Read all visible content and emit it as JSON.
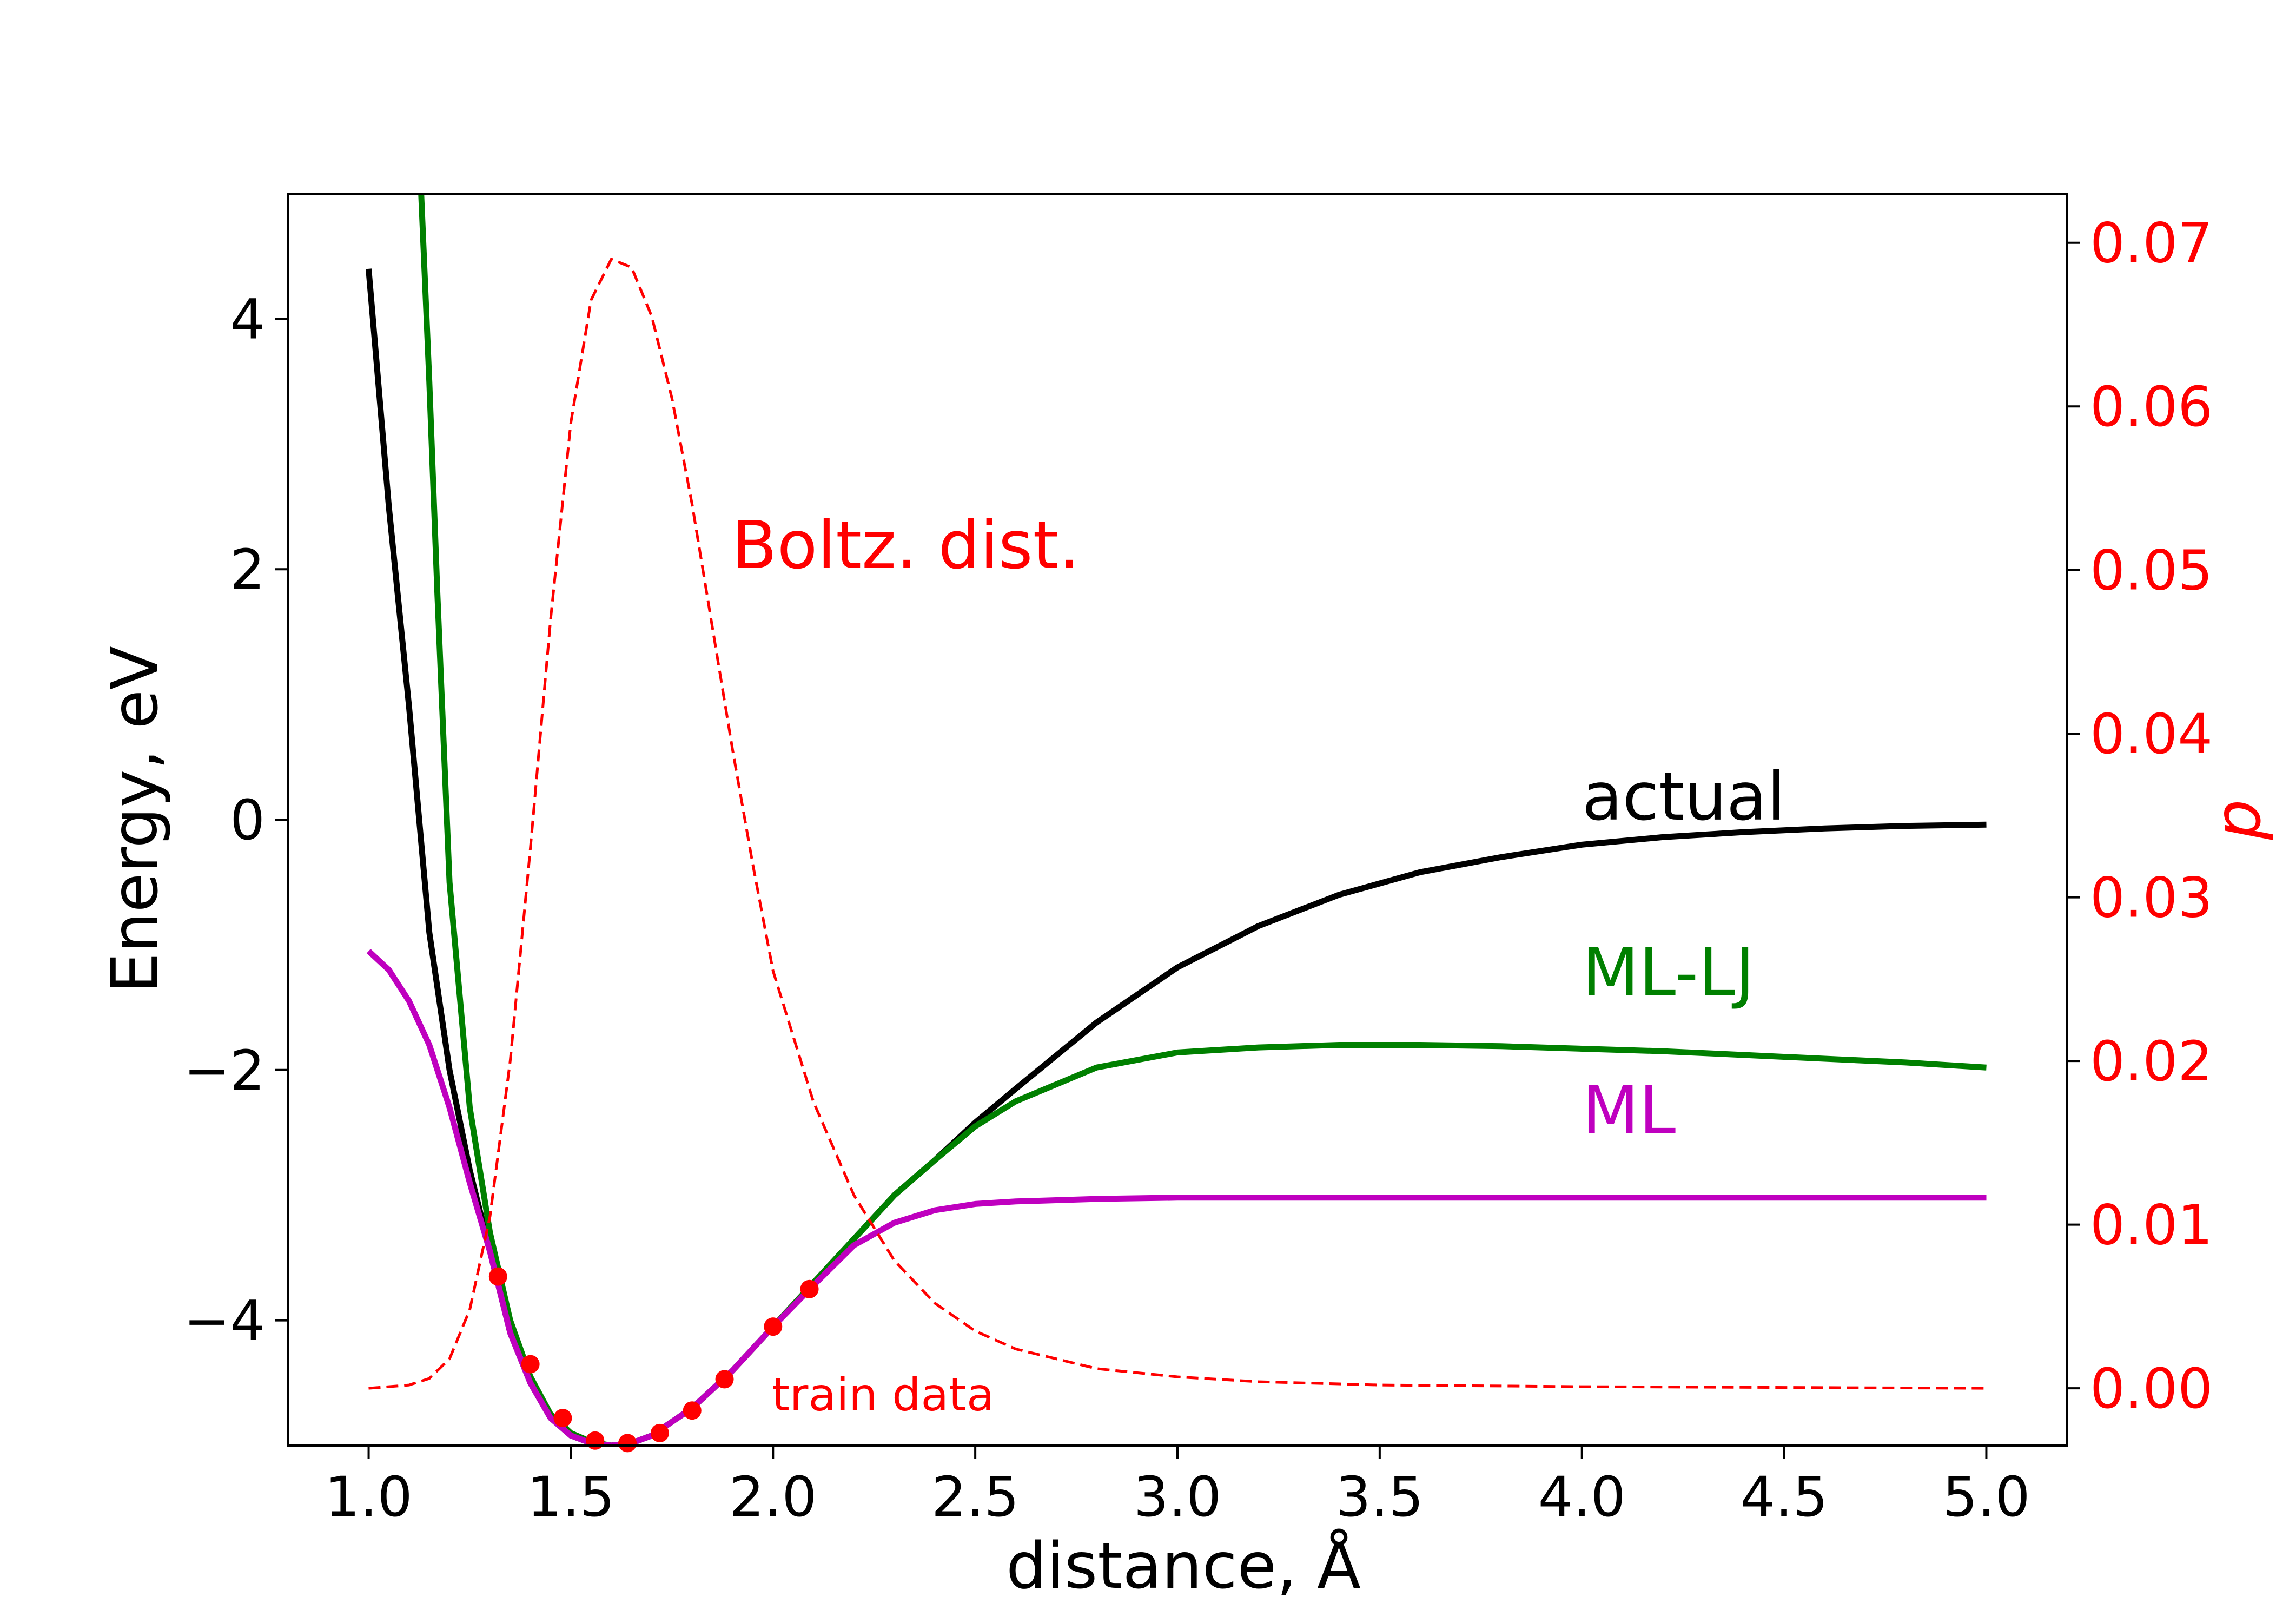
{
  "chart_data": {
    "type": "line",
    "xlabel": "distance, Å",
    "ylabel": "Energy, eV",
    "ylabel_right": "p",
    "xlim": [
      0.8,
      5.2
    ],
    "ylim": [
      -5.0,
      5.0
    ],
    "ylim_right": [
      -0.0035,
      0.073
    ],
    "x_ticks": [
      "1.0",
      "1.5",
      "2.0",
      "2.5",
      "3.0",
      "3.5",
      "4.0",
      "4.5",
      "5.0"
    ],
    "y_ticks": [
      "−4",
      "−2",
      "0",
      "2",
      "4"
    ],
    "y_ticks_right": [
      "0.00",
      "0.01",
      "0.02",
      "0.03",
      "0.04",
      "0.05",
      "0.06",
      "0.07"
    ],
    "grid": false,
    "annotations": [
      {
        "text": "Boltz. dist.",
        "color": "#ff0000"
      },
      {
        "text": "actual",
        "color": "#000000"
      },
      {
        "text": "ML-LJ",
        "color": "#008000"
      },
      {
        "text": "ML",
        "color": "#bf00bf"
      },
      {
        "text": "train data",
        "color": "#ff0000"
      }
    ],
    "series": [
      {
        "color": "#000000",
        "axis": "left",
        "style": "solid",
        "x": [
          1.0,
          1.05,
          1.1,
          1.15,
          1.2,
          1.25,
          1.3,
          1.35,
          1.4,
          1.45,
          1.5,
          1.55,
          1.6,
          1.65,
          1.7,
          1.8,
          1.9,
          2.0,
          2.1,
          2.2,
          2.3,
          2.4,
          2.5,
          2.6,
          2.8,
          3.0,
          3.2,
          3.4,
          3.6,
          3.8,
          4.0,
          4.2,
          4.4,
          4.6,
          4.8,
          5.0
        ],
        "y": [
          4.4,
          2.5,
          0.9,
          -0.9,
          -2.0,
          -2.8,
          -3.45,
          -4.1,
          -4.5,
          -4.78,
          -4.92,
          -4.98,
          -5.0,
          -4.98,
          -4.92,
          -4.7,
          -4.4,
          -4.05,
          -3.7,
          -3.35,
          -3.0,
          -2.72,
          -2.42,
          -2.15,
          -1.62,
          -1.18,
          -0.85,
          -0.6,
          -0.42,
          -0.3,
          -0.2,
          -0.14,
          -0.1,
          -0.07,
          -0.05,
          -0.04
        ]
      },
      {
        "color": "#008000",
        "axis": "left",
        "style": "solid",
        "x": [
          1.13,
          1.15,
          1.17,
          1.2,
          1.25,
          1.3,
          1.35,
          1.4,
          1.45,
          1.5,
          1.55,
          1.6,
          1.65,
          1.7,
          1.8,
          1.9,
          2.0,
          2.1,
          2.2,
          2.3,
          2.4,
          2.5,
          2.6,
          2.8,
          3.0,
          3.2,
          3.4,
          3.6,
          3.8,
          4.0,
          4.2,
          4.4,
          4.6,
          4.8,
          5.0
        ],
        "y": [
          5.0,
          3.5,
          1.8,
          -0.5,
          -2.3,
          -3.3,
          -4.0,
          -4.45,
          -4.75,
          -4.9,
          -4.97,
          -5.0,
          -4.98,
          -4.92,
          -4.7,
          -4.4,
          -4.05,
          -3.7,
          -3.35,
          -3.0,
          -2.72,
          -2.45,
          -2.25,
          -1.98,
          -1.86,
          -1.82,
          -1.8,
          -1.8,
          -1.81,
          -1.83,
          -1.85,
          -1.88,
          -1.91,
          -1.94,
          -1.98
        ]
      },
      {
        "color": "#bf00bf",
        "axis": "left",
        "style": "solid",
        "x": [
          1.0,
          1.05,
          1.1,
          1.15,
          1.2,
          1.25,
          1.3,
          1.35,
          1.4,
          1.45,
          1.5,
          1.55,
          1.6,
          1.65,
          1.7,
          1.8,
          1.9,
          2.0,
          2.1,
          2.2,
          2.3,
          2.4,
          2.5,
          2.6,
          2.8,
          3.0,
          3.5,
          4.0,
          4.5,
          5.0
        ],
        "y": [
          -1.05,
          -1.2,
          -1.45,
          -1.8,
          -2.3,
          -2.9,
          -3.45,
          -4.1,
          -4.5,
          -4.78,
          -4.92,
          -4.98,
          -5.0,
          -4.98,
          -4.92,
          -4.7,
          -4.4,
          -4.05,
          -3.72,
          -3.4,
          -3.22,
          -3.12,
          -3.07,
          -3.05,
          -3.03,
          -3.02,
          -3.02,
          -3.02,
          -3.02,
          -3.02
        ]
      },
      {
        "color": "#ff0000",
        "axis": "right",
        "style": "dashed",
        "x": [
          1.0,
          1.1,
          1.15,
          1.2,
          1.25,
          1.3,
          1.35,
          1.4,
          1.45,
          1.5,
          1.55,
          1.6,
          1.65,
          1.7,
          1.75,
          1.8,
          1.85,
          1.9,
          1.95,
          2.0,
          2.1,
          2.2,
          2.3,
          2.4,
          2.5,
          2.6,
          2.8,
          3.0,
          3.2,
          3.5,
          4.0,
          4.5,
          5.0
        ],
        "y": [
          0.0,
          0.0002,
          0.0006,
          0.0018,
          0.0048,
          0.0105,
          0.02,
          0.033,
          0.047,
          0.059,
          0.0665,
          0.069,
          0.0685,
          0.0655,
          0.0605,
          0.054,
          0.0465,
          0.039,
          0.032,
          0.0255,
          0.0175,
          0.0118,
          0.0078,
          0.0052,
          0.0035,
          0.0024,
          0.0012,
          0.0007,
          0.0004,
          0.0002,
          0.0001,
          5e-05,
          0.0
        ]
      }
    ],
    "train_data": {
      "color": "#ff0000",
      "x": [
        1.32,
        1.4,
        1.48,
        1.56,
        1.64,
        1.72,
        1.8,
        1.88,
        2.0,
        2.09
      ],
      "y": [
        -3.65,
        -4.35,
        -4.78,
        -4.96,
        -4.98,
        -4.9,
        -4.72,
        -4.47,
        -4.05,
        -3.75
      ]
    }
  }
}
